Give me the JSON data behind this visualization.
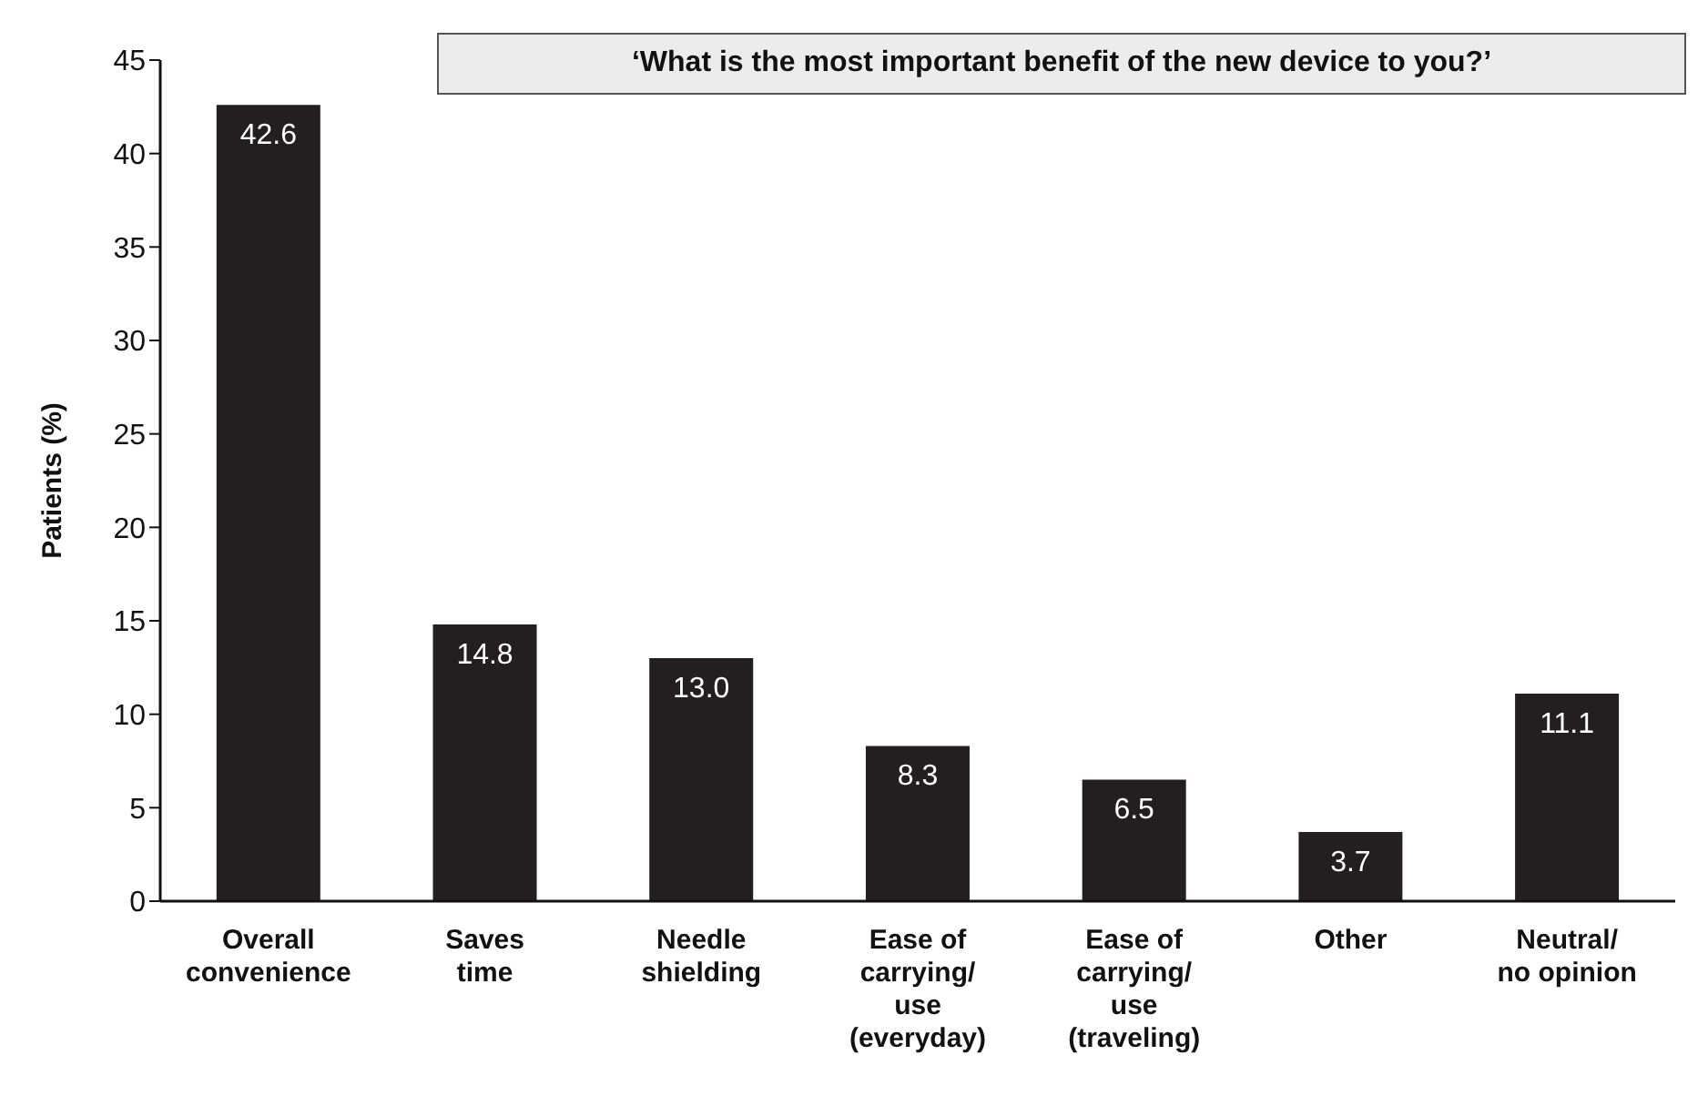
{
  "chart_data": {
    "type": "bar",
    "title": "‘What is the most important benefit of the new device to you?’",
    "ylabel": "Patients (%)",
    "categories": [
      "Overall convenience",
      "Saves time",
      "Needle shielding",
      "Ease of carrying/ use (everyday)",
      "Ease of carrying/ use (traveling)",
      "Other",
      "Neutral/ no opinion"
    ],
    "values": [
      42.6,
      14.8,
      13.0,
      8.3,
      6.5,
      3.7,
      11.1
    ],
    "value_labels": [
      "42.6",
      "14.8",
      "13.0",
      "8.3",
      "6.5",
      "3.7",
      "11.1"
    ],
    "color": "#231f20",
    "ylim": [
      0,
      45
    ],
    "yticks": [
      0,
      5,
      10,
      15,
      20,
      25,
      30,
      35,
      40,
      45
    ]
  }
}
